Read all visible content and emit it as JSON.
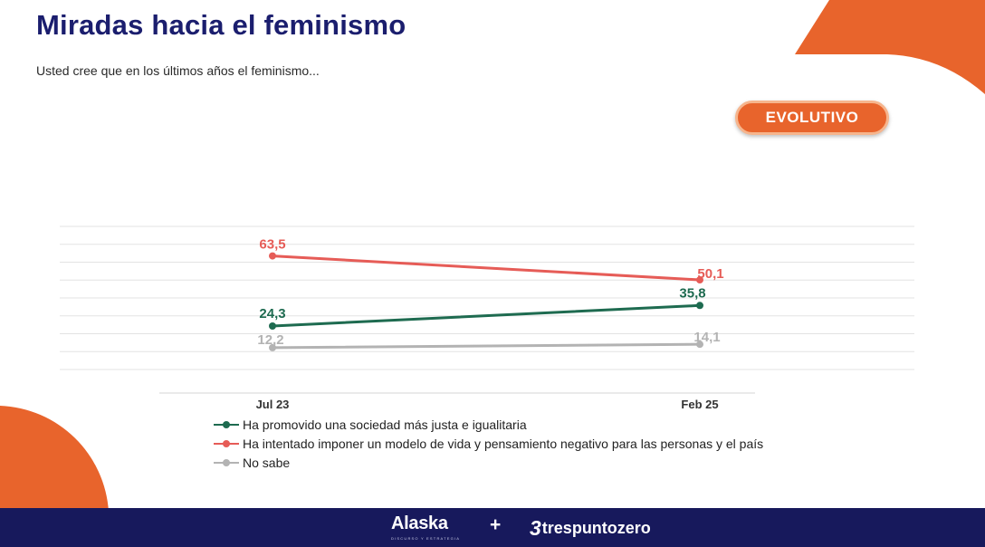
{
  "header": {
    "title": "Miradas hacia el feminismo",
    "subtitle": "Usted cree que en los últimos años el feminismo..."
  },
  "badge": {
    "label": "EVOLUTIVO"
  },
  "colors": {
    "accent": "#e8642c",
    "title": "#1b1e6e",
    "footer": "#17195c",
    "series_green": "#1e6b50",
    "series_red": "#e65c57",
    "series_gray": "#b3b3b3"
  },
  "chart_data": {
    "type": "line",
    "title": "",
    "xlabel": "",
    "ylabel": "",
    "categories": [
      "Jul 23",
      "Feb 25"
    ],
    "ylim": [
      0,
      80
    ],
    "grid": true,
    "legend": "bottom",
    "series": [
      {
        "name": "Ha promovido una sociedad más justa e igualitaria",
        "values": [
          24.3,
          35.8
        ],
        "labels": [
          "24,3",
          "35,8"
        ],
        "color": "#1e6b50"
      },
      {
        "name": "Ha intentado imponer un modelo de vida y pensamiento negativo para las personas y el país",
        "values": [
          63.5,
          50.1
        ],
        "labels": [
          "63,5",
          "50,1"
        ],
        "color": "#e65c57"
      },
      {
        "name": "No sabe",
        "values": [
          12.2,
          14.1
        ],
        "labels": [
          "12,2",
          "14,1"
        ],
        "color": "#b3b3b3"
      }
    ]
  },
  "footer": {
    "brand_left": "Alaska",
    "brand_left_tagline": "DISCURSO Y ESTRATEGIA",
    "plus": "+",
    "brand_right_mark": "3",
    "brand_right": "trespuntozero"
  }
}
